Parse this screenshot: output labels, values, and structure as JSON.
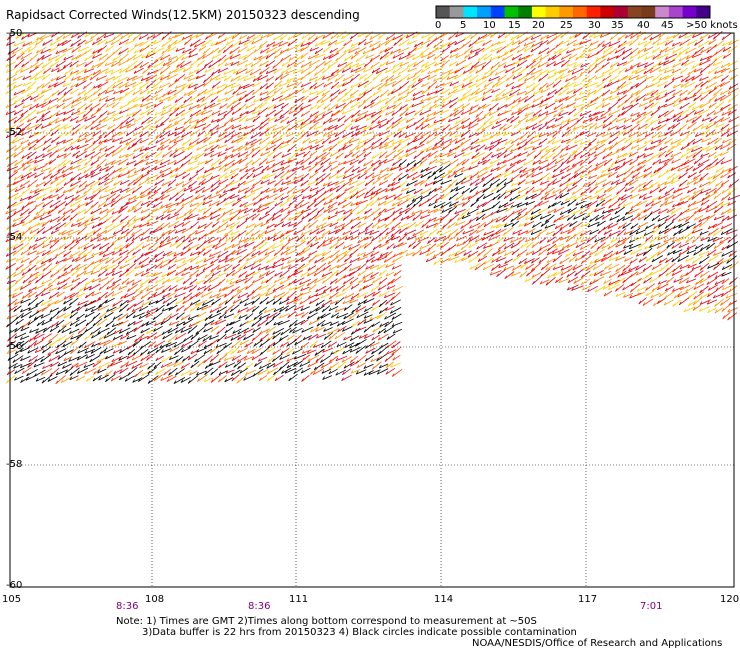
{
  "title": "Rapidsact Corrected Winds(12.5KM) 20150323 descending",
  "legend": {
    "labels": [
      "0",
      "5",
      "10",
      "15",
      "20",
      "25",
      "30",
      "35",
      "40",
      "45",
      ">50 knots"
    ],
    "colors": [
      "#555555",
      "#999999",
      "#00e5ff",
      "#00a0ff",
      "#0040ff",
      "#00c000",
      "#008000",
      "#ffff00",
      "#ffcc00",
      "#ff9900",
      "#ff6600",
      "#ff2000",
      "#cc0000",
      "#aa0033",
      "#884422",
      "#7a3b1a",
      "#cc88cc",
      "#aa44cc",
      "#7700cc",
      "#440088"
    ]
  },
  "map": {
    "lat_labels": [
      "-50",
      "-52",
      "-54",
      "-56",
      "-58",
      "-60"
    ],
    "lon_labels": [
      "105",
      "108",
      "111",
      "114",
      "117",
      "120"
    ],
    "time_labels": [
      "8:36",
      "8:36",
      "7:01"
    ],
    "wind_colors": [
      "#ff0000",
      "#dd0000",
      "#ff3300",
      "#ff6600",
      "#ff9900",
      "#ffcc00",
      "#cc0022",
      "#000000"
    ]
  },
  "notes": {
    "line1": "Note: 1) Times are GMT 2)Times along bottom correspond to measurement at ~50S",
    "line2": "3)Data buffer is 22 hrs from 20150323 4) Black circles indicate possible contamination",
    "line3": "NOAA/NESDIS/Office of Research and Applications"
  }
}
